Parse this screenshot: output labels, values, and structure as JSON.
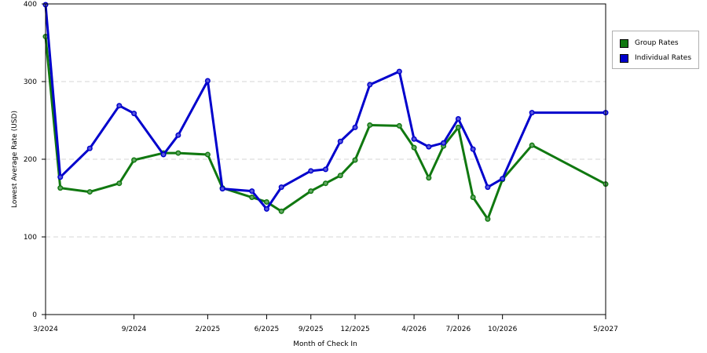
{
  "chart_data": {
    "type": "line",
    "xlabel": "Month of Check In",
    "ylabel": "Lowest Average Rate (USD)",
    "ylim": [
      0,
      400
    ],
    "yticks": [
      0,
      100,
      200,
      300,
      400
    ],
    "grid": "horizontal dashed",
    "legend_position": "top-right",
    "x_tick_labels": [
      "3/2024",
      "9/2024",
      "2/2025",
      "6/2025",
      "9/2025",
      "12/2025",
      "4/2026",
      "7/2026",
      "10/2026",
      "5/2027"
    ],
    "x": [
      "3/2024",
      "4/2024",
      "5/2024",
      "6/2024",
      "7/2024",
      "8/2024",
      "9/2024",
      "10/2024",
      "11/2024",
      "12/2024",
      "1/2025",
      "2/2025",
      "3/2025",
      "4/2025",
      "5/2025",
      "6/2025",
      "7/2025",
      "8/2025",
      "9/2025",
      "10/2025",
      "11/2025",
      "12/2025",
      "1/2026",
      "2/2026",
      "3/2026",
      "4/2026",
      "5/2026",
      "6/2026",
      "7/2026",
      "8/2026",
      "9/2026",
      "10/2026",
      "11/2026",
      "12/2026",
      "1/2027",
      "2/2027",
      "3/2027",
      "4/2027",
      "5/2027"
    ],
    "series": [
      {
        "name": "Group Rates",
        "color": "#107810",
        "points": [
          [
            "3/2024",
            358
          ],
          [
            "4/2024",
            163
          ],
          [
            "6/2024",
            158
          ],
          [
            "8/2024",
            169
          ],
          [
            "9/2024",
            199
          ],
          [
            "11/2024",
            208
          ],
          [
            "12/2024",
            208
          ],
          [
            "2/2025",
            206
          ],
          [
            "3/2025",
            163
          ],
          [
            "5/2025",
            151
          ],
          [
            "6/2025",
            145
          ],
          [
            "7/2025",
            133
          ],
          [
            "9/2025",
            159
          ],
          [
            "10/2025",
            169
          ],
          [
            "11/2025",
            179
          ],
          [
            "12/2025",
            199
          ],
          [
            "1/2026",
            244
          ],
          [
            "3/2026",
            243
          ],
          [
            "4/2026",
            215
          ],
          [
            "5/2026",
            176
          ],
          [
            "6/2026",
            217
          ],
          [
            "7/2026",
            241
          ],
          [
            "8/2026",
            151
          ],
          [
            "9/2026",
            123
          ],
          [
            "10/2026",
            174
          ],
          [
            "12/2026",
            218
          ],
          [
            "5/2027",
            168
          ]
        ]
      },
      {
        "name": "Individual Rates",
        "color": "#0000cc",
        "points": [
          [
            "3/2024",
            399
          ],
          [
            "4/2024",
            177
          ],
          [
            "6/2024",
            214
          ],
          [
            "8/2024",
            269
          ],
          [
            "9/2024",
            259
          ],
          [
            "11/2024",
            206
          ],
          [
            "12/2024",
            231
          ],
          [
            "2/2025",
            301
          ],
          [
            "3/2025",
            162
          ],
          [
            "5/2025",
            159
          ],
          [
            "6/2025",
            136
          ],
          [
            "7/2025",
            164
          ],
          [
            "9/2025",
            185
          ],
          [
            "10/2025",
            187
          ],
          [
            "11/2025",
            223
          ],
          [
            "12/2025",
            241
          ],
          [
            "1/2026",
            296
          ],
          [
            "3/2026",
            313
          ],
          [
            "4/2026",
            226
          ],
          [
            "5/2026",
            216
          ],
          [
            "6/2026",
            221
          ],
          [
            "7/2026",
            252
          ],
          [
            "8/2026",
            213
          ],
          [
            "9/2026",
            164
          ],
          [
            "10/2026",
            175
          ],
          [
            "12/2026",
            260
          ],
          [
            "5/2027",
            260
          ]
        ]
      }
    ]
  }
}
